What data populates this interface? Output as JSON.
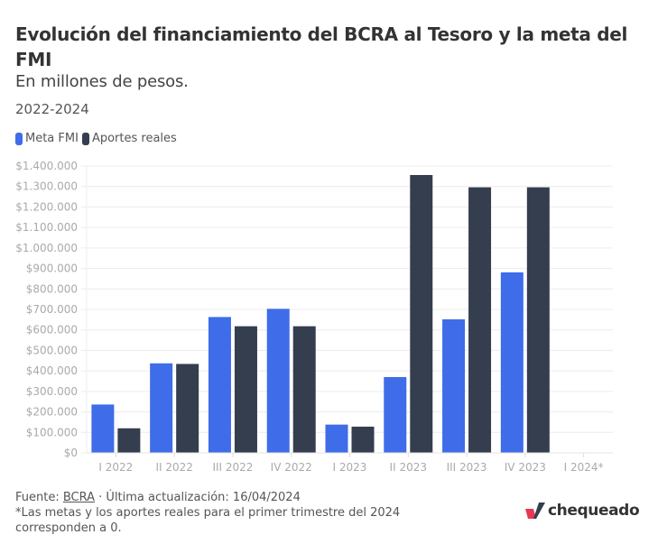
{
  "header": {
    "title": "Evolución del financiamiento del BCRA al Tesoro y la meta del FMI",
    "subtitle": "En millones de pesos.",
    "period": "2022-2024"
  },
  "colors": {
    "meta": "#3f6ce8",
    "aportes": "#343e4f",
    "logo_red": "#e8384f",
    "logo_dark": "#343e4f"
  },
  "chart_data": {
    "type": "bar",
    "title": "Evolución del financiamiento del BCRA al Tesoro y la meta del FMI",
    "subtitle": "En millones de pesos.",
    "xlabel": "",
    "ylabel": "",
    "ylim": [
      0,
      1400000
    ],
    "grid": true,
    "legend_position": "top-left",
    "categories": [
      "I 2022",
      "II 2022",
      "III 2022",
      "IV 2022",
      "I 2023",
      "II 2023",
      "III 2023",
      "IV 2023",
      "I 2024*"
    ],
    "series": [
      {
        "name": "Meta FMI",
        "color": "#3f6ce8",
        "values": [
          236000,
          437000,
          663000,
          703000,
          138000,
          370000,
          652000,
          881000,
          0
        ]
      },
      {
        "name": "Aportes reales",
        "color": "#343e4f",
        "values": [
          120000,
          434000,
          618000,
          618000,
          128000,
          1356000,
          1296000,
          1296000,
          0
        ]
      }
    ],
    "yticks": [
      0,
      100000,
      200000,
      300000,
      400000,
      500000,
      600000,
      700000,
      800000,
      900000,
      1000000,
      1100000,
      1200000,
      1300000,
      1400000
    ],
    "ytick_labels": [
      "$0",
      "$100.000",
      "$200.000",
      "$300.000",
      "$400.000",
      "$500.000",
      "$600.000",
      "$700.000",
      "$800.000",
      "$900.000",
      "$1.000.000",
      "$1.100.000",
      "$1.200.000",
      "$1.300.000",
      "$1.400.000"
    ]
  },
  "footer": {
    "source_prefix": "Fuente: ",
    "source_link": "BCRA",
    "update": " · Última actualización: 16/04/2024",
    "note_line1": "*Las metas y los aportes reales para el primer trimestre del 2024",
    "note_line2": "corresponden a 0."
  },
  "logo": {
    "text": "chequeado"
  }
}
